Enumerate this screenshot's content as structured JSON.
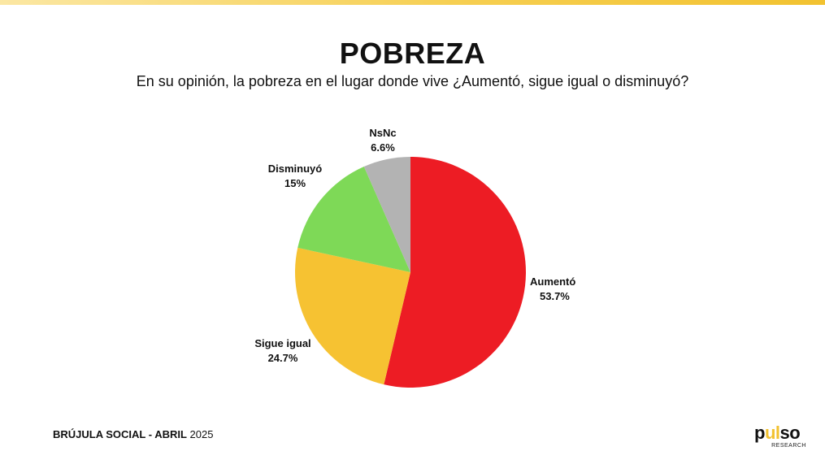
{
  "header": {
    "title": "POBREZA",
    "subtitle": "En su opinión, la pobreza en el lugar donde vive ¿Aumentó, sigue igual o disminuyó?"
  },
  "chart_data": {
    "type": "pie",
    "title": "POBREZA",
    "subtitle": "En su opinión, la pobreza en el lugar donde vive ¿Aumentó, sigue igual o disminuyó?",
    "slices": [
      {
        "label": "Aumentó",
        "value": 53.7,
        "value_label": "53.7%",
        "color": "#ed1c24"
      },
      {
        "label": "Sigue igual",
        "value": 24.7,
        "value_label": "24.7%",
        "color": "#f6c232"
      },
      {
        "label": "Disminuyó",
        "value": 15,
        "value_label": "15%",
        "color": "#7ed957"
      },
      {
        "label": "NsNc",
        "value": 6.6,
        "value_label": "6.6%",
        "color": "#b3b3b3"
      }
    ],
    "start": "12 o'clock",
    "direction": "clockwise",
    "legend": "none"
  },
  "footer": {
    "brand_bold": "BRÚJULA SOCIAL - ABRIL",
    "year": "2025"
  },
  "logo": {
    "text_start": "p",
    "text_accent": "ul",
    "text_end": "so",
    "subtext": "RESEARCH"
  },
  "colors": {
    "accent_bar": "#f2c230"
  }
}
